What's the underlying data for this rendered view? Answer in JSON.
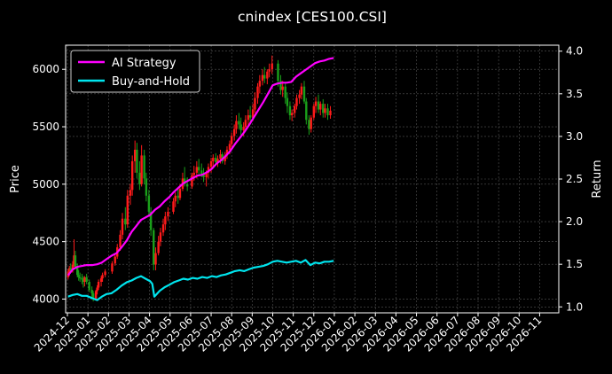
{
  "chart_data": {
    "type": "line",
    "title": "cnindex [CES100.CSI]",
    "xlabel": "",
    "ylabel": "Price",
    "ylabel_right": "Return",
    "x_ticks": [
      "2024-12",
      "2025-01",
      "2025-02",
      "2025-03",
      "2025-04",
      "2025-05",
      "2025-06",
      "2025-07",
      "2025-08",
      "2025-09",
      "2025-10",
      "2025-11",
      "2025-12",
      "2026-01",
      "2026-02",
      "2026-03",
      "2026-04",
      "2026-05",
      "2026-06",
      "2026-07",
      "2026-08",
      "2026-09",
      "2026-10",
      "2026-11"
    ],
    "y_ticks_left": [
      "4000",
      "4500",
      "5000",
      "5500",
      "6000"
    ],
    "y_ticks_right": [
      "1.0",
      "1.5",
      "2.0",
      "2.5",
      "3.0",
      "3.5",
      "4.0"
    ],
    "ylim_left": [
      3880,
      6210
    ],
    "ylim_right": [
      0.93,
      4.07
    ],
    "grid": true,
    "legend_position": "top-left",
    "colors": {
      "background": "#000000",
      "up_candle": "#ff1a1a",
      "down_candle": "#1aa01a",
      "grid": "#555555",
      "ai_strategy": "#ff00ff",
      "buy_and_hold": "#00e5ee"
    },
    "price_ohlc": [
      [
        "2024-12-02",
        4190,
        4260,
        4170,
        4240
      ],
      [
        "2024-12-04",
        4240,
        4290,
        4200,
        4270
      ],
      [
        "2024-12-06",
        4270,
        4310,
        4230,
        4250
      ],
      [
        "2024-12-09",
        4250,
        4330,
        4230,
        4300
      ],
      [
        "2024-12-11",
        4300,
        4520,
        4280,
        4380
      ],
      [
        "2024-12-13",
        4380,
        4420,
        4260,
        4280
      ],
      [
        "2024-12-16",
        4280,
        4310,
        4190,
        4210
      ],
      [
        "2024-12-18",
        4210,
        4250,
        4160,
        4190
      ],
      [
        "2024-12-20",
        4190,
        4230,
        4150,
        4180
      ],
      [
        "2024-12-23",
        4180,
        4220,
        4130,
        4170
      ],
      [
        "2024-12-25",
        4170,
        4200,
        4100,
        4150
      ],
      [
        "2024-12-27",
        4150,
        4200,
        4110,
        4190
      ],
      [
        "2024-12-30",
        4190,
        4220,
        4130,
        4150
      ],
      [
        "2025-01-03",
        4150,
        4170,
        4060,
        4080
      ],
      [
        "2025-01-07",
        4080,
        4110,
        4010,
        4050
      ],
      [
        "2025-01-09",
        4050,
        4070,
        3980,
        4000
      ],
      [
        "2025-01-13",
        4000,
        4080,
        3990,
        4070
      ],
      [
        "2025-01-15",
        4070,
        4120,
        4040,
        4100
      ],
      [
        "2025-01-17",
        4100,
        4170,
        4080,
        4150
      ],
      [
        "2025-01-21",
        4150,
        4200,
        4110,
        4180
      ],
      [
        "2025-01-23",
        4180,
        4230,
        4150,
        4210
      ],
      [
        "2025-01-27",
        4210,
        4260,
        4190,
        4240
      ],
      [
        "2025-02-06",
        4240,
        4330,
        4220,
        4310
      ],
      [
        "2025-02-10",
        4310,
        4390,
        4290,
        4370
      ],
      [
        "2025-02-13",
        4370,
        4480,
        4350,
        4450
      ],
      [
        "2025-02-17",
        4450,
        4600,
        4420,
        4560
      ],
      [
        "2025-02-20",
        4560,
        4750,
        4520,
        4700
      ],
      [
        "2025-02-24",
        4700,
        4800,
        4600,
        4650
      ],
      [
        "2025-02-27",
        4650,
        4950,
        4620,
        4900
      ],
      [
        "2025-03-03",
        4900,
        5000,
        4820,
        4950
      ],
      [
        "2025-03-06",
        4950,
        5250,
        4900,
        5200
      ],
      [
        "2025-03-10",
        5200,
        5380,
        5100,
        5300
      ],
      [
        "2025-03-13",
        5300,
        5360,
        5050,
        5100
      ],
      [
        "2025-03-17",
        5100,
        5200,
        4950,
        5000
      ],
      [
        "2025-03-20",
        5000,
        5340,
        4980,
        5250
      ],
      [
        "2025-03-24",
        5250,
        5300,
        5000,
        5050
      ],
      [
        "2025-03-27",
        5050,
        5100,
        4850,
        4900
      ],
      [
        "2025-03-31",
        4900,
        4950,
        4720,
        4760
      ],
      [
        "2025-04-03",
        4760,
        4800,
        4550,
        4600
      ],
      [
        "2025-04-07",
        4600,
        4620,
        4250,
        4300
      ],
      [
        "2025-04-10",
        4300,
        4450,
        4250,
        4400
      ],
      [
        "2025-04-14",
        4400,
        4550,
        4380,
        4500
      ],
      [
        "2025-04-17",
        4500,
        4620,
        4460,
        4580
      ],
      [
        "2025-04-21",
        4580,
        4700,
        4550,
        4650
      ],
      [
        "2025-04-24",
        4650,
        4760,
        4600,
        4720
      ],
      [
        "2025-04-28",
        4720,
        4800,
        4680,
        4760
      ],
      [
        "2025-05-06",
        4760,
        4880,
        4740,
        4850
      ],
      [
        "2025-05-09",
        4850,
        4930,
        4800,
        4900
      ],
      [
        "2025-05-13",
        4900,
        4960,
        4830,
        4880
      ],
      [
        "2025-05-16",
        4880,
        5000,
        4860,
        4960
      ],
      [
        "2025-05-20",
        4960,
        5100,
        4940,
        5050
      ],
      [
        "2025-05-23",
        5050,
        5150,
        4980,
        5000
      ],
      [
        "2025-05-27",
        5000,
        5060,
        4940,
        4980
      ],
      [
        "2025-06-03",
        4980,
        5100,
        4960,
        5080
      ],
      [
        "2025-06-06",
        5080,
        5160,
        5030,
        5100
      ],
      [
        "2025-06-10",
        5100,
        5200,
        5050,
        5150
      ],
      [
        "2025-06-13",
        5150,
        5220,
        5080,
        5120
      ],
      [
        "2025-06-17",
        5120,
        5180,
        5060,
        5090
      ],
      [
        "2025-06-20",
        5090,
        5140,
        5020,
        5060
      ],
      [
        "2025-06-24",
        5060,
        5120,
        4980,
        5100
      ],
      [
        "2025-06-27",
        5100,
        5180,
        5050,
        5150
      ],
      [
        "2025-07-01",
        5150,
        5230,
        5100,
        5200
      ],
      [
        "2025-07-04",
        5200,
        5260,
        5140,
        5230
      ],
      [
        "2025-07-08",
        5230,
        5270,
        5160,
        5190
      ],
      [
        "2025-07-11",
        5190,
        5250,
        5150,
        5220
      ],
      [
        "2025-07-15",
        5220,
        5300,
        5180,
        5260
      ],
      [
        "2025-07-18",
        5260,
        5280,
        5180,
        5200
      ],
      [
        "2025-07-22",
        5200,
        5280,
        5170,
        5250
      ],
      [
        "2025-07-25",
        5250,
        5330,
        5220,
        5300
      ],
      [
        "2025-07-29",
        5300,
        5380,
        5260,
        5350
      ],
      [
        "2025-08-01",
        5350,
        5450,
        5320,
        5420
      ],
      [
        "2025-08-05",
        5420,
        5520,
        5380,
        5480
      ],
      [
        "2025-08-08",
        5480,
        5600,
        5440,
        5550
      ],
      [
        "2025-08-12",
        5550,
        5620,
        5480,
        5520
      ],
      [
        "2025-08-15",
        5520,
        5580,
        5430,
        5470
      ],
      [
        "2025-08-19",
        5470,
        5540,
        5420,
        5500
      ],
      [
        "2025-08-22",
        5500,
        5600,
        5460,
        5560
      ],
      [
        "2025-08-26",
        5560,
        5650,
        5500,
        5600
      ],
      [
        "2025-08-29",
        5600,
        5680,
        5540,
        5580
      ],
      [
        "2025-09-02",
        5580,
        5700,
        5550,
        5650
      ],
      [
        "2025-09-05",
        5650,
        5800,
        5620,
        5750
      ],
      [
        "2025-09-09",
        5750,
        5880,
        5700,
        5850
      ],
      [
        "2025-09-12",
        5850,
        5950,
        5790,
        5900
      ],
      [
        "2025-09-16",
        5900,
        6000,
        5860,
        5950
      ],
      [
        "2025-09-19",
        5950,
        6020,
        5880,
        5920
      ],
      [
        "2025-09-23",
        5920,
        6000,
        5870,
        5980
      ],
      [
        "2025-09-26",
        5980,
        6050,
        5930,
        6000
      ],
      [
        "2025-09-30",
        6000,
        6120,
        5960,
        6050
      ],
      [
        "2025-10-09",
        6050,
        6080,
        5850,
        5900
      ],
      [
        "2025-10-13",
        5900,
        5950,
        5780,
        5820
      ],
      [
        "2025-10-16",
        5820,
        5900,
        5760,
        5850
      ],
      [
        "2025-10-20",
        5850,
        5880,
        5700,
        5750
      ],
      [
        "2025-10-23",
        5750,
        5800,
        5620,
        5680
      ],
      [
        "2025-10-27",
        5680,
        5720,
        5560,
        5600
      ],
      [
        "2025-10-30",
        5600,
        5650,
        5550,
        5620
      ],
      [
        "2025-11-03",
        5620,
        5700,
        5580,
        5680
      ],
      [
        "2025-11-06",
        5680,
        5780,
        5650,
        5750
      ],
      [
        "2025-11-10",
        5750,
        5820,
        5700,
        5780
      ],
      [
        "2025-11-13",
        5780,
        5880,
        5740,
        5850
      ],
      [
        "2025-11-17",
        5850,
        5900,
        5700,
        5720
      ],
      [
        "2025-11-20",
        5720,
        5750,
        5520,
        5560
      ],
      [
        "2025-11-24",
        5560,
        5600,
        5430,
        5480
      ],
      [
        "2025-11-27",
        5480,
        5600,
        5450,
        5580
      ],
      [
        "2025-12-01",
        5580,
        5700,
        5560,
        5680
      ],
      [
        "2025-12-04",
        5680,
        5760,
        5620,
        5720
      ],
      [
        "2025-12-08",
        5720,
        5780,
        5620,
        5650
      ],
      [
        "2025-12-11",
        5650,
        5720,
        5600,
        5700
      ],
      [
        "2025-12-15",
        5700,
        5740,
        5580,
        5620
      ],
      [
        "2025-12-18",
        5620,
        5700,
        5580,
        5660
      ],
      [
        "2025-12-22",
        5660,
        5700,
        5560,
        5600
      ],
      [
        "2025-12-26",
        5600,
        5680,
        5570,
        5640
      ]
    ],
    "series": [
      {
        "name": "AI Strategy",
        "points": [
          [
            "2024-12-02",
            1.37
          ],
          [
            "2024-12-09",
            1.44
          ],
          [
            "2024-12-16",
            1.47
          ],
          [
            "2024-12-23",
            1.48
          ],
          [
            "2024-12-30",
            1.49
          ],
          [
            "2025-01-08",
            1.49
          ],
          [
            "2025-01-15",
            1.5
          ],
          [
            "2025-01-22",
            1.52
          ],
          [
            "2025-01-29",
            1.56
          ],
          [
            "2025-02-05",
            1.6
          ],
          [
            "2025-02-12",
            1.63
          ],
          [
            "2025-02-19",
            1.7
          ],
          [
            "2025-02-26",
            1.78
          ],
          [
            "2025-03-05",
            1.88
          ],
          [
            "2025-03-12",
            1.95
          ],
          [
            "2025-03-19",
            2.02
          ],
          [
            "2025-03-26",
            2.05
          ],
          [
            "2025-04-02",
            2.08
          ],
          [
            "2025-04-09",
            2.14
          ],
          [
            "2025-04-16",
            2.18
          ],
          [
            "2025-04-23",
            2.24
          ],
          [
            "2025-04-30",
            2.29
          ],
          [
            "2025-05-07",
            2.35
          ],
          [
            "2025-05-14",
            2.4
          ],
          [
            "2025-05-21",
            2.45
          ],
          [
            "2025-05-28",
            2.48
          ],
          [
            "2025-06-04",
            2.51
          ],
          [
            "2025-06-11",
            2.54
          ],
          [
            "2025-06-18",
            2.55
          ],
          [
            "2025-06-25",
            2.58
          ],
          [
            "2025-07-02",
            2.62
          ],
          [
            "2025-07-09",
            2.68
          ],
          [
            "2025-07-16",
            2.72
          ],
          [
            "2025-07-23",
            2.77
          ],
          [
            "2025-07-30",
            2.83
          ],
          [
            "2025-08-06",
            2.91
          ],
          [
            "2025-08-13",
            2.98
          ],
          [
            "2025-08-20",
            3.05
          ],
          [
            "2025-08-27",
            3.13
          ],
          [
            "2025-09-03",
            3.22
          ],
          [
            "2025-09-10",
            3.31
          ],
          [
            "2025-09-17",
            3.4
          ],
          [
            "2025-09-24",
            3.5
          ],
          [
            "2025-10-01",
            3.6
          ],
          [
            "2025-10-08",
            3.62
          ],
          [
            "2025-10-15",
            3.63
          ],
          [
            "2025-10-22",
            3.63
          ],
          [
            "2025-10-29",
            3.64
          ],
          [
            "2025-11-05",
            3.7
          ],
          [
            "2025-11-12",
            3.74
          ],
          [
            "2025-11-19",
            3.78
          ],
          [
            "2025-11-26",
            3.82
          ],
          [
            "2025-12-03",
            3.86
          ],
          [
            "2025-12-10",
            3.88
          ],
          [
            "2025-12-17",
            3.89
          ],
          [
            "2025-12-24",
            3.91
          ],
          [
            "2025-12-31",
            3.92
          ]
        ]
      },
      {
        "name": "Buy-and-Hold",
        "points": [
          [
            "2024-12-02",
            1.12
          ],
          [
            "2024-12-09",
            1.14
          ],
          [
            "2024-12-16",
            1.15
          ],
          [
            "2024-12-23",
            1.13
          ],
          [
            "2024-12-30",
            1.13
          ],
          [
            "2025-01-08",
            1.1
          ],
          [
            "2025-01-15",
            1.08
          ],
          [
            "2025-01-22",
            1.12
          ],
          [
            "2025-01-29",
            1.15
          ],
          [
            "2025-02-05",
            1.16
          ],
          [
            "2025-02-12",
            1.2
          ],
          [
            "2025-02-19",
            1.25
          ],
          [
            "2025-02-26",
            1.29
          ],
          [
            "2025-03-05",
            1.31
          ],
          [
            "2025-03-12",
            1.34
          ],
          [
            "2025-03-19",
            1.36
          ],
          [
            "2025-03-26",
            1.33
          ],
          [
            "2025-04-02",
            1.3
          ],
          [
            "2025-04-05",
            1.27
          ],
          [
            "2025-04-08",
            1.12
          ],
          [
            "2025-04-16",
            1.19
          ],
          [
            "2025-04-23",
            1.23
          ],
          [
            "2025-04-30",
            1.26
          ],
          [
            "2025-05-07",
            1.29
          ],
          [
            "2025-05-14",
            1.31
          ],
          [
            "2025-05-21",
            1.33
          ],
          [
            "2025-05-28",
            1.32
          ],
          [
            "2025-06-04",
            1.34
          ],
          [
            "2025-06-11",
            1.33
          ],
          [
            "2025-06-18",
            1.35
          ],
          [
            "2025-06-25",
            1.34
          ],
          [
            "2025-07-02",
            1.36
          ],
          [
            "2025-07-09",
            1.35
          ],
          [
            "2025-07-16",
            1.37
          ],
          [
            "2025-07-23",
            1.38
          ],
          [
            "2025-07-30",
            1.4
          ],
          [
            "2025-08-06",
            1.42
          ],
          [
            "2025-08-13",
            1.43
          ],
          [
            "2025-08-20",
            1.42
          ],
          [
            "2025-08-27",
            1.44
          ],
          [
            "2025-09-03",
            1.46
          ],
          [
            "2025-09-10",
            1.47
          ],
          [
            "2025-09-17",
            1.48
          ],
          [
            "2025-09-24",
            1.5
          ],
          [
            "2025-10-01",
            1.53
          ],
          [
            "2025-10-08",
            1.54
          ],
          [
            "2025-10-15",
            1.53
          ],
          [
            "2025-10-22",
            1.52
          ],
          [
            "2025-10-29",
            1.53
          ],
          [
            "2025-11-05",
            1.54
          ],
          [
            "2025-11-12",
            1.52
          ],
          [
            "2025-11-19",
            1.55
          ],
          [
            "2025-11-26",
            1.49
          ],
          [
            "2025-12-03",
            1.52
          ],
          [
            "2025-12-10",
            1.51
          ],
          [
            "2025-12-17",
            1.53
          ],
          [
            "2025-12-24",
            1.53
          ],
          [
            "2025-12-31",
            1.54
          ]
        ]
      }
    ]
  }
}
